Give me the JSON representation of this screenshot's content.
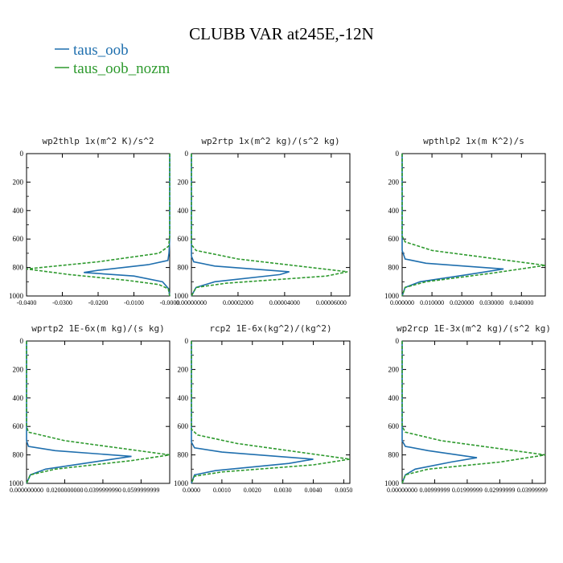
{
  "title": "CLUBB VAR at245E,-12N",
  "legend": [
    {
      "label": "taus_oob",
      "color": "#1f6fae"
    },
    {
      "label": "taus_oob_nozm",
      "color": "#2e9a2e"
    }
  ],
  "chart_data": [
    {
      "type": "line",
      "title": "wp2thlp   1x(m^2 K)/s^2",
      "xticks": [
        "-0.0400",
        "-0.0300",
        "-0.0200",
        "-0.0100",
        "-0.0000"
      ],
      "xlim": [
        -0.04,
        0.0
      ],
      "yticks": [
        "0",
        "200",
        "400",
        "600",
        "800",
        "1000"
      ],
      "ylim": [
        1000,
        0
      ],
      "series": [
        {
          "name": "taus_oob",
          "color": "#1f6fae",
          "dash": false,
          "x": [
            0,
            0,
            0,
            -0.0002,
            -0.0005,
            -0.006,
            -0.02,
            -0.024,
            -0.01,
            -0.002,
            -0.0003,
            0
          ],
          "y": [
            0,
            200,
            600,
            700,
            750,
            780,
            820,
            835,
            860,
            900,
            950,
            1000
          ]
        },
        {
          "name": "taus_oob_nozm",
          "color": "#2e9a2e",
          "dash": true,
          "x": [
            0,
            0,
            0,
            -0.0003,
            -0.003,
            -0.02,
            -0.04,
            -0.028,
            -0.012,
            -0.003,
            -0.0004,
            0
          ],
          "y": [
            0,
            200,
            580,
            650,
            700,
            760,
            810,
            850,
            890,
            920,
            950,
            1000
          ]
        }
      ]
    },
    {
      "type": "line",
      "title": "wp2rtp   1x(m^2 kg)/(s^2 kg)",
      "xticks": [
        "0.00000000",
        "0.00002000",
        "0.00004000",
        "0.00006000"
      ],
      "xlim": [
        0,
        6.8e-05
      ],
      "yticks": [
        "0",
        "200",
        "400",
        "600",
        "800",
        "1000"
      ],
      "ylim": [
        1000,
        0
      ],
      "series": [
        {
          "name": "taus_oob",
          "color": "#1f6fae",
          "dash": false,
          "x": [
            0,
            0,
            0,
            1e-06,
            1e-05,
            4.2e-05,
            3.8e-05,
            1e-05,
            2e-06,
            0
          ],
          "y": [
            0,
            200,
            720,
            760,
            790,
            830,
            850,
            900,
            940,
            1000
          ]
        },
        {
          "name": "taus_oob_nozm",
          "color": "#2e9a2e",
          "dash": true,
          "x": [
            0,
            0,
            0,
            2e-06,
            2e-05,
            6.7e-05,
            5.8e-05,
            1.5e-05,
            2e-06,
            0
          ],
          "y": [
            0,
            200,
            640,
            680,
            740,
            830,
            860,
            910,
            940,
            1000
          ]
        }
      ]
    },
    {
      "type": "line",
      "title": "wpthlp2   1x(m K^2)/s",
      "xticks": [
        "0.000000",
        "0.010000",
        "0.020000",
        "0.030000",
        "0.040000"
      ],
      "xlim": [
        0,
        0.048
      ],
      "yticks": [
        "0",
        "200",
        "400",
        "600",
        "800",
        "1000"
      ],
      "ylim": [
        1000,
        0
      ],
      "series": [
        {
          "name": "taus_oob",
          "color": "#1f6fae",
          "dash": false,
          "x": [
            0,
            0,
            0,
            0.001,
            0.008,
            0.034,
            0.022,
            0.006,
            0.001,
            0
          ],
          "y": [
            0,
            200,
            680,
            740,
            770,
            810,
            850,
            900,
            940,
            1000
          ]
        },
        {
          "name": "taus_oob_nozm",
          "color": "#2e9a2e",
          "dash": true,
          "x": [
            0,
            0,
            0,
            0.001,
            0.01,
            0.048,
            0.03,
            0.008,
            0.001,
            0
          ],
          "y": [
            0,
            200,
            580,
            620,
            680,
            785,
            840,
            900,
            940,
            1000
          ]
        }
      ]
    },
    {
      "type": "line",
      "title": "wprtp2   1E-6x(m kg)/(s kg)",
      "xticks": [
        "0.000000000",
        "0.0200000000",
        "0.0399999990",
        "0.0599999999"
      ],
      "xlim": [
        0,
        0.075
      ],
      "yticks": [
        "0",
        "200",
        "400",
        "600",
        "800",
        "1000"
      ],
      "ylim": [
        1000,
        0
      ],
      "series": [
        {
          "name": "taus_oob",
          "color": "#1f6fae",
          "dash": false,
          "x": [
            0,
            0,
            0,
            0.001,
            0.015,
            0.055,
            0.04,
            0.01,
            0.002,
            0
          ],
          "y": [
            0,
            200,
            700,
            740,
            770,
            810,
            840,
            900,
            940,
            1000
          ]
        },
        {
          "name": "taus_oob_nozm",
          "color": "#2e9a2e",
          "dash": true,
          "x": [
            0,
            0,
            0,
            0.001,
            0.02,
            0.075,
            0.055,
            0.015,
            0.002,
            0
          ],
          "y": [
            0,
            200,
            600,
            640,
            700,
            800,
            840,
            900,
            940,
            1000
          ]
        }
      ]
    },
    {
      "type": "line",
      "title": "rcp2   1E-6x(kg^2)/(kg^2)",
      "xticks": [
        "0.0000",
        "0.0010",
        "0.0020",
        "0.0030",
        "0.0040",
        "0.0050"
      ],
      "xlim": [
        0,
        0.0052
      ],
      "yticks": [
        "0",
        "200",
        "400",
        "600",
        "800",
        "1000"
      ],
      "ylim": [
        1000,
        0
      ],
      "series": [
        {
          "name": "taus_oob",
          "color": "#1f6fae",
          "dash": false,
          "x": [
            0,
            0,
            0,
            0.0001,
            0.001,
            0.004,
            0.0032,
            0.0008,
            0.0001,
            0
          ],
          "y": [
            0,
            200,
            710,
            750,
            780,
            830,
            860,
            910,
            940,
            1000
          ]
        },
        {
          "name": "taus_oob_nozm",
          "color": "#2e9a2e",
          "dash": true,
          "x": [
            0,
            0,
            0,
            0.0002,
            0.0015,
            0.0052,
            0.004,
            0.001,
            0.0001,
            0
          ],
          "y": [
            0,
            200,
            620,
            660,
            720,
            830,
            870,
            920,
            950,
            1000
          ]
        }
      ]
    },
    {
      "type": "line",
      "title": "wp2rcp   1E-3x(m^2 kg)/(s^2 kg)",
      "xticks": [
        "0.00000000",
        "0.00999999",
        "0.01999999",
        "0.02999999",
        "0.03999999"
      ],
      "xlim": [
        0,
        0.044
      ],
      "yticks": [
        "0",
        "200",
        "400",
        "600",
        "800",
        "1000"
      ],
      "ylim": [
        1000,
        0
      ],
      "series": [
        {
          "name": "taus_oob",
          "color": "#1f6fae",
          "dash": false,
          "x": [
            0,
            0,
            0,
            0.001,
            0.008,
            0.023,
            0.015,
            0.004,
            0.001,
            0
          ],
          "y": [
            0,
            200,
            700,
            740,
            770,
            820,
            850,
            900,
            940,
            1000
          ]
        },
        {
          "name": "taus_oob_nozm",
          "color": "#2e9a2e",
          "dash": true,
          "x": [
            0,
            0,
            0,
            0.001,
            0.012,
            0.044,
            0.03,
            0.008,
            0.001,
            0
          ],
          "y": [
            0,
            200,
            600,
            640,
            700,
            800,
            850,
            900,
            940,
            1000
          ]
        }
      ]
    }
  ]
}
